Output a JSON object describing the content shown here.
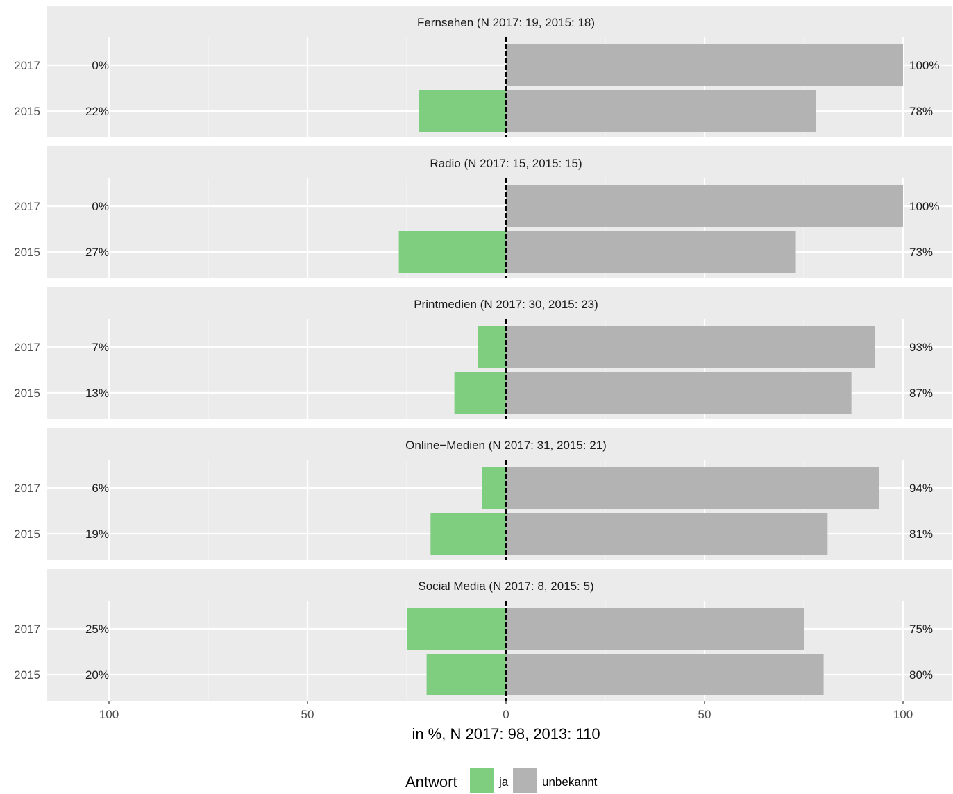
{
  "chart_data": {
    "type": "bar",
    "orientation": "horizontal",
    "stacking": "diverging",
    "xlabel": "in %, N 2017: 98, 2013: 110",
    "x_ticks": [
      {
        "value": -100,
        "label": "100"
      },
      {
        "value": -50,
        "label": "50"
      },
      {
        "value": 0,
        "label": "0"
      },
      {
        "value": 50,
        "label": "50"
      },
      {
        "value": 100,
        "label": "100"
      }
    ],
    "xlim": [
      -115,
      107
    ],
    "categories": [
      "2017",
      "2015"
    ],
    "legend": {
      "title": "Antwort",
      "position": "bottom",
      "items": [
        {
          "label": "ja",
          "color": "#7fcd7f"
        },
        {
          "label": "unbekannt",
          "color": "#b3b3b3"
        }
      ]
    },
    "panels": [
      {
        "title": "Fernsehen (N 2017: 19, 2015: 18)",
        "rows": [
          {
            "year": "2017",
            "ja": 0,
            "unbekannt": 100,
            "ja_label": "0%",
            "unbekannt_label": "100%"
          },
          {
            "year": "2015",
            "ja": 22,
            "unbekannt": 78,
            "ja_label": "22%",
            "unbekannt_label": "78%"
          }
        ]
      },
      {
        "title": "Radio (N 2017: 15, 2015: 15)",
        "rows": [
          {
            "year": "2017",
            "ja": 0,
            "unbekannt": 100,
            "ja_label": "0%",
            "unbekannt_label": "100%"
          },
          {
            "year": "2015",
            "ja": 27,
            "unbekannt": 73,
            "ja_label": "27%",
            "unbekannt_label": "73%"
          }
        ]
      },
      {
        "title": "Printmedien (N 2017: 30, 2015: 23)",
        "rows": [
          {
            "year": "2017",
            "ja": 7,
            "unbekannt": 93,
            "ja_label": "7%",
            "unbekannt_label": "93%"
          },
          {
            "year": "2015",
            "ja": 13,
            "unbekannt": 87,
            "ja_label": "13%",
            "unbekannt_label": "87%"
          }
        ]
      },
      {
        "title": "Online−Medien (N 2017: 31, 2015: 21)",
        "rows": [
          {
            "year": "2017",
            "ja": 6,
            "unbekannt": 94,
            "ja_label": "6%",
            "unbekannt_label": "94%"
          },
          {
            "year": "2015",
            "ja": 19,
            "unbekannt": 81,
            "ja_label": "19%",
            "unbekannt_label": "81%"
          }
        ]
      },
      {
        "title": "Social Media (N 2017: 8, 2015: 5)",
        "rows": [
          {
            "year": "2017",
            "ja": 25,
            "unbekannt": 75,
            "ja_label": "25%",
            "unbekannt_label": "75%"
          },
          {
            "year": "2015",
            "ja": 20,
            "unbekannt": 80,
            "ja_label": "20%",
            "unbekannt_label": "80%"
          }
        ]
      }
    ],
    "colors": {
      "panel_bg": "#ebebeb",
      "strip_bg": "#d9d9d9",
      "grid": "#ffffff",
      "zero_line": "#000000"
    }
  }
}
